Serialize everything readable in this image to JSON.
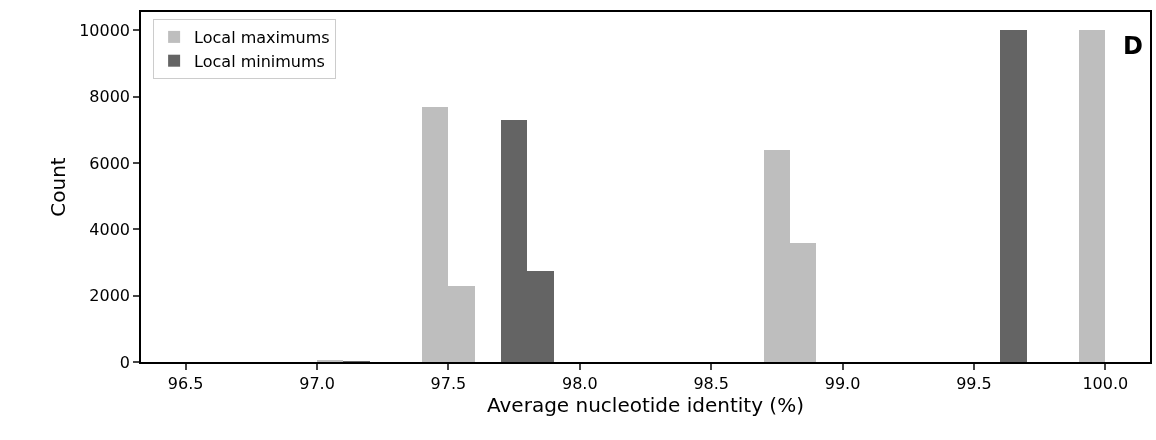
{
  "chart_data": {
    "type": "histogram",
    "xlabel": "Average nucleotide identity (%)",
    "ylabel": "Count",
    "annotations": [
      "D"
    ],
    "bins": [
      97.0,
      97.1,
      97.2,
      97.3,
      97.4,
      97.5,
      97.6,
      97.7,
      97.8,
      97.9,
      98.0,
      98.1,
      98.2,
      98.3,
      98.4,
      98.5,
      98.6,
      98.7,
      98.8,
      98.9,
      99.0,
      99.1,
      99.2,
      99.3,
      99.4,
      99.5,
      99.6,
      99.7,
      99.8,
      99.9,
      100.0
    ],
    "series": [
      {
        "name": "Local maximums",
        "color": "#bebebe",
        "values": [
          50,
          0,
          0,
          0,
          7700,
          2300,
          0,
          0,
          0,
          0,
          0,
          0,
          0,
          0,
          0,
          0,
          0,
          6400,
          3600,
          0,
          0,
          0,
          0,
          0,
          0,
          0,
          0,
          0,
          0,
          10000
        ]
      },
      {
        "name": "Local minimums",
        "color": "#646464",
        "values": [
          0,
          20,
          0,
          0,
          0,
          0,
          0,
          7300,
          2750,
          0,
          0,
          0,
          0,
          0,
          0,
          0,
          0,
          0,
          0,
          0,
          0,
          0,
          0,
          0,
          0,
          0,
          10000,
          0,
          0,
          0
        ]
      }
    ],
    "xlim": [
      96.33,
      100.17
    ],
    "xticks": [
      {
        "value": 96.5,
        "label": "96.5"
      },
      {
        "value": 97.0,
        "label": "97.0"
      },
      {
        "value": 97.5,
        "label": "97.5"
      },
      {
        "value": 98.0,
        "label": "98.0"
      },
      {
        "value": 98.5,
        "label": "98.5"
      },
      {
        "value": 99.0,
        "label": "99.0"
      },
      {
        "value": 99.5,
        "label": "99.5"
      },
      {
        "value": 100.0,
        "label": "100.0"
      }
    ],
    "ylim": [
      0,
      10550
    ],
    "yticks": [
      0,
      2000,
      4000,
      6000,
      8000,
      10000
    ],
    "grid": false,
    "legend": "top left"
  }
}
